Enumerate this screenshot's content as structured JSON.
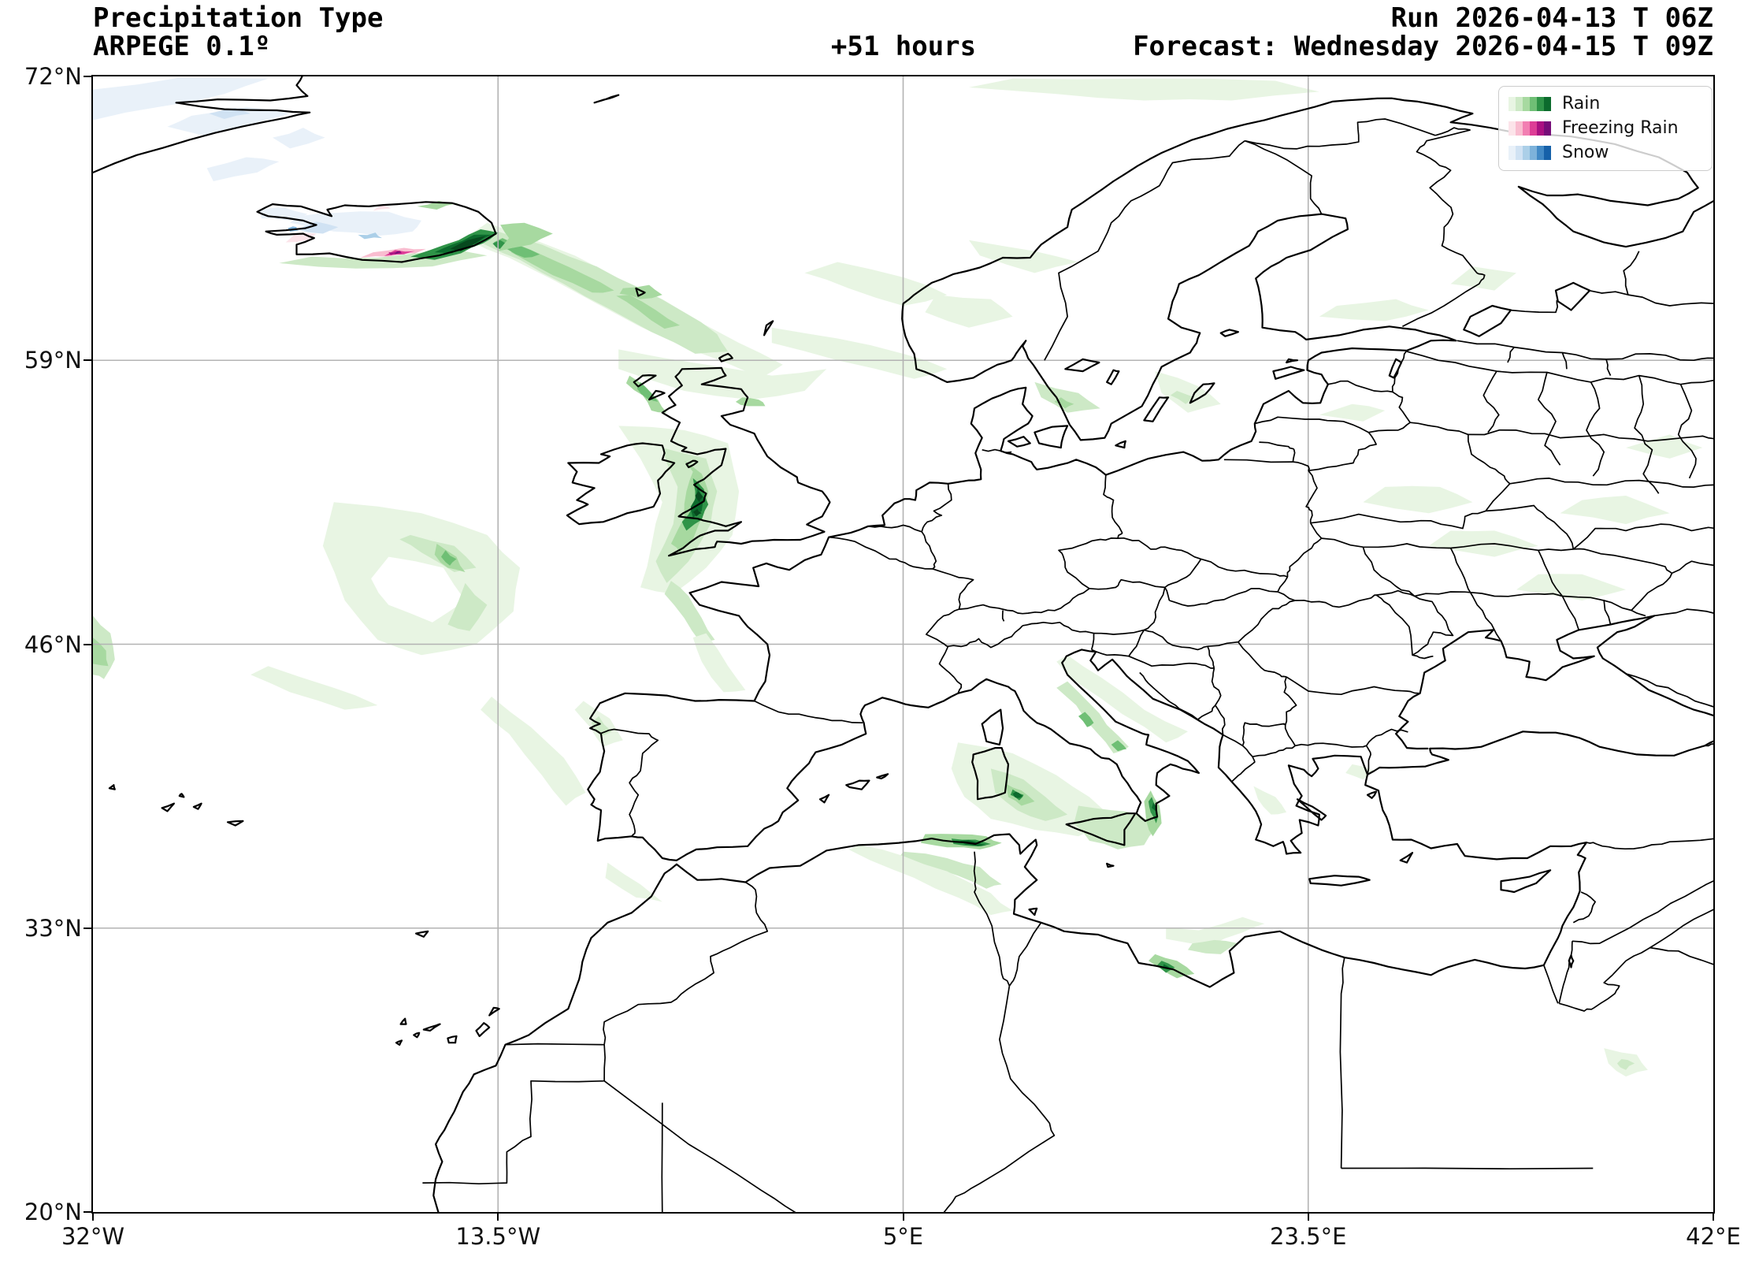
{
  "header": {
    "title_line1": "Precipitation Type",
    "title_line2": "ARPEGE 0.1º",
    "lead_time": "+51 hours",
    "run": "Run 2026-04-13 T 06Z",
    "forecast": "Forecast: Wednesday 2026-04-15 T 09Z"
  },
  "legend": {
    "items": [
      {
        "label": "Rain",
        "colors": [
          "#e8f5e3",
          "#cde9c6",
          "#a7d9a0",
          "#6fbf75",
          "#2f9448",
          "#0c6b2d"
        ]
      },
      {
        "label": "Freezing Rain",
        "colors": [
          "#fce4ea",
          "#f9bdd0",
          "#f27fb2",
          "#dd3d96",
          "#aa1182",
          "#760d78"
        ]
      },
      {
        "label": "Snow",
        "colors": [
          "#e9f1f9",
          "#d0e2f3",
          "#abcfe8",
          "#7db2da",
          "#4289c5",
          "#1661a9"
        ]
      }
    ]
  },
  "axes": {
    "y_ticks": [
      "72°N",
      "59°N",
      "46°N",
      "33°N",
      "20°N"
    ],
    "x_ticks": [
      "32°W",
      "13.5°W",
      "5°E",
      "23.5°E",
      "42°E"
    ]
  },
  "map": {
    "background": "#ffffff",
    "frame_color": "#000000",
    "grid_color": "#b3b3b3",
    "coast_color": "#000000",
    "palettes": {
      "rain": [
        "#e8f5e3",
        "#cde9c6",
        "#a7d9a0",
        "#6fbf75",
        "#2f9448",
        "#0c6b2d",
        "#07491e"
      ],
      "freezing": [
        "#fce4ea",
        "#f9bdd0",
        "#f27fb2",
        "#dd3d96",
        "#aa1182",
        "#760d78"
      ],
      "snow": [
        "#e9f1f9",
        "#d0e2f3",
        "#abcfe8",
        "#7db2da",
        "#4289c5",
        "#1661a9"
      ],
      "white": [
        "#ffffff"
      ]
    }
  }
}
